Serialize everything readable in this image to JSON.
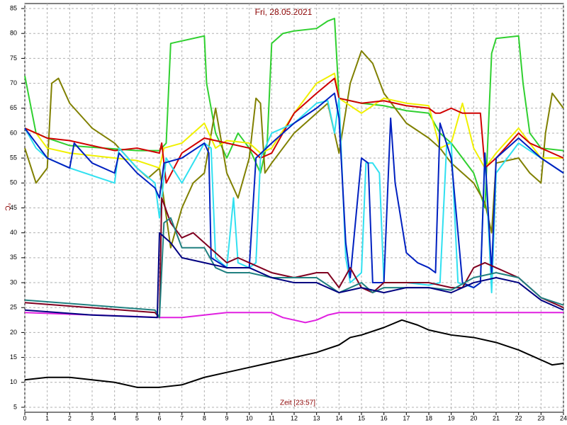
{
  "chart_data": {
    "type": "line",
    "title": "Fri, 28.05.2021",
    "x_label": "Zeit [23:57]",
    "y_label": "°C",
    "xlim": [
      0,
      24
    ],
    "xticks": [
      0,
      1,
      2,
      3,
      4,
      5,
      6,
      7,
      8,
      9,
      10,
      11,
      12,
      13,
      14,
      15,
      16,
      17,
      18,
      19,
      20,
      21,
      22,
      23,
      24
    ],
    "ylim": [
      4,
      86
    ],
    "yticks": [
      5,
      10,
      15,
      20,
      25,
      30,
      35,
      40,
      45,
      50,
      55,
      60,
      65,
      70,
      75,
      80,
      85
    ],
    "grid": true,
    "series": [
      {
        "color": "#000000",
        "x": [
          0,
          1,
          2,
          3,
          4,
          5,
          6,
          7,
          8,
          9,
          10,
          11,
          12,
          13,
          14,
          14.5,
          15,
          16,
          16.8,
          17.5,
          18,
          19,
          20,
          21,
          22,
          23,
          23.5,
          24
        ],
        "values": [
          10.5,
          11,
          11,
          10.5,
          10,
          9,
          9,
          9.5,
          11,
          12,
          13,
          14,
          15,
          16,
          17.5,
          19,
          19.5,
          21,
          22.5,
          21.5,
          20.5,
          19.5,
          19,
          18,
          16.5,
          14.5,
          13.5,
          13.8
        ]
      },
      {
        "color": "#e020e0",
        "x": [
          0,
          5,
          6,
          7,
          8,
          9,
          10,
          11,
          11.5,
          12,
          12.5,
          13,
          13.5,
          14,
          24
        ],
        "values": [
          24,
          23.2,
          23,
          23,
          23.5,
          24,
          24,
          24,
          23,
          22.5,
          22,
          22.5,
          23.5,
          24,
          24
        ]
      },
      {
        "color": "#30d030",
        "x": [
          0,
          0.5,
          1,
          2,
          5,
          6,
          6.3,
          6.5,
          8,
          8.1,
          8.5,
          9,
          9.5,
          10,
          10.5,
          10.8,
          11,
          11.5,
          12,
          13,
          13.5,
          13.8,
          14,
          15,
          16,
          17,
          18,
          18.5,
          19,
          20,
          20.5,
          20.8,
          21,
          22,
          22.2,
          22.5,
          23,
          24
        ],
        "values": [
          71.5,
          60,
          59,
          57.5,
          56.5,
          56.5,
          58,
          78,
          79.5,
          70,
          60,
          55,
          60,
          57,
          52,
          58,
          78,
          80,
          80.5,
          81,
          82.5,
          83,
          67,
          66,
          65.5,
          64.5,
          64,
          60,
          58,
          52,
          45,
          76,
          79,
          79.5,
          70,
          60,
          57,
          56.5
        ]
      },
      {
        "color": "#808000",
        "x": [
          0,
          0.5,
          1,
          1.2,
          1.5,
          2,
          3,
          4,
          5,
          5.5,
          6,
          6.5,
          7,
          7.5,
          8,
          8.5,
          9,
          9.5,
          10,
          10.3,
          10.5,
          10.7,
          11,
          12,
          13,
          13.5,
          13.8,
          14,
          14.5,
          15,
          15.5,
          16,
          17,
          18,
          18.5,
          19,
          20,
          20.5,
          20.8,
          21,
          22,
          22.5,
          23,
          23.2,
          23.5,
          24
        ],
        "values": [
          57,
          50,
          53,
          70,
          71,
          66,
          61,
          58,
          53,
          51,
          53,
          37,
          45,
          50,
          52,
          65,
          52,
          47,
          55,
          67,
          66,
          52,
          54,
          60,
          64,
          66,
          60,
          56,
          70,
          76.5,
          74,
          68,
          62,
          59,
          57,
          54,
          50,
          46,
          40,
          54,
          55,
          52,
          50,
          60,
          68,
          65
        ]
      },
      {
        "color": "#f0f000",
        "x": [
          0,
          0.5,
          1,
          2,
          4,
          5,
          6,
          6.2,
          7,
          8,
          8.5,
          9,
          10,
          10.5,
          11,
          12,
          13,
          13.8,
          14,
          15,
          16,
          17,
          18,
          18.5,
          19,
          19.5,
          20,
          20.5,
          21,
          22,
          22.5,
          23,
          24
        ],
        "values": [
          61,
          60,
          57,
          56,
          55,
          54.5,
          53,
          57,
          58,
          62,
          57,
          58.5,
          58,
          56,
          57,
          64,
          70,
          72,
          67,
          64,
          67,
          66,
          65.5,
          57,
          58,
          66,
          57,
          53,
          56,
          61,
          58,
          55,
          55
        ]
      },
      {
        "color": "#d00000",
        "x": [
          0,
          1,
          2,
          4,
          5,
          6,
          6.1,
          6.3,
          7,
          8,
          9,
          10,
          10.5,
          11,
          12,
          13,
          13.8,
          14,
          15,
          16,
          17,
          18,
          18.3,
          18.5,
          19,
          19.5,
          20,
          20.3,
          20.5,
          21,
          22,
          22.5,
          23,
          24
        ],
        "values": [
          61,
          59,
          58.5,
          56.5,
          57,
          56,
          58,
          50,
          56,
          59,
          58,
          57,
          55,
          56,
          64,
          68,
          71,
          67,
          66,
          66.5,
          65.5,
          65,
          64,
          64,
          65,
          64,
          64,
          64,
          53,
          55,
          60,
          58,
          57,
          55
        ]
      },
      {
        "color": "#30e0f0",
        "x": [
          0,
          0.5,
          1,
          2,
          4,
          4.2,
          5,
          5.8,
          6,
          6.3,
          7,
          8,
          8.3,
          8.5,
          9,
          9.3,
          9.5,
          10,
          10.3,
          10.5,
          11,
          12,
          13,
          13.5,
          13.8,
          14,
          14.3,
          14.5,
          15,
          15.2,
          15.5,
          15.8,
          16,
          16.5,
          17,
          18,
          18.5,
          18.8,
          19,
          19.3,
          20,
          20.3,
          20.5,
          20.8,
          21,
          22,
          23,
          24
        ],
        "values": [
          61,
          57,
          55,
          53,
          50,
          57,
          53,
          50,
          43,
          55,
          50,
          58,
          57,
          35,
          33,
          47,
          34,
          33,
          34,
          55,
          60,
          62,
          66,
          66.5,
          60,
          67,
          35,
          30,
          32,
          54,
          54,
          52,
          30,
          30,
          30,
          29.5,
          30,
          58,
          58,
          30,
          29,
          30,
          56,
          28,
          52,
          58,
          55,
          52
        ]
      },
      {
        "color": "#0020c0",
        "x": [
          0,
          1,
          2,
          2.2,
          3,
          4,
          4.2,
          5,
          5.8,
          6,
          6.2,
          7,
          8,
          8.2,
          8.3,
          9,
          10,
          10.3,
          11,
          12,
          13,
          13.8,
          14,
          14.3,
          14.5,
          15,
          15.3,
          15.5,
          16,
          16.3,
          16.5,
          17,
          17.5,
          18,
          18.3,
          18.5,
          19,
          19.5,
          20,
          20.3,
          20.5,
          20.8,
          21,
          22,
          23,
          24
        ],
        "values": [
          61,
          55,
          53,
          58,
          54,
          52,
          56,
          52,
          49,
          47,
          54,
          55,
          58,
          56,
          35,
          33,
          33,
          55,
          58,
          62,
          65,
          68,
          63,
          38,
          31,
          55,
          54,
          30,
          30,
          63,
          50,
          36,
          34,
          33,
          32,
          62,
          55,
          30,
          29,
          30,
          56,
          32,
          55,
          59,
          55,
          52
        ]
      },
      {
        "color": "#800020",
        "x": [
          0,
          5.8,
          6,
          6.1,
          6.5,
          7,
          7.5,
          8,
          8.5,
          9,
          9.5,
          10,
          10.5,
          11,
          12,
          13,
          13.5,
          14,
          14.5,
          15,
          15.5,
          16,
          17,
          18,
          19,
          19.5,
          20,
          20.5,
          21,
          22,
          23,
          24
        ],
        "values": [
          26,
          24,
          23,
          47,
          42,
          39,
          40,
          38,
          36,
          34,
          35,
          34,
          33,
          32,
          31,
          32,
          32,
          29,
          33,
          29,
          28,
          30,
          30,
          30,
          29,
          29,
          33,
          34,
          33,
          31,
          27,
          25
        ]
      },
      {
        "color": "#208080",
        "x": [
          0,
          5.8,
          6,
          6.2,
          6.5,
          7,
          8,
          8.5,
          9,
          10,
          11,
          12,
          13,
          14,
          15,
          15.5,
          16,
          17,
          18,
          19,
          20,
          21,
          22,
          23,
          24
        ],
        "values": [
          26.5,
          24.5,
          23,
          42,
          43,
          37,
          37,
          33,
          32,
          32,
          31,
          31,
          31,
          28,
          30,
          28,
          29,
          29,
          29,
          28.5,
          31,
          32,
          31,
          27,
          25.5
        ]
      },
      {
        "color": "#000080",
        "x": [
          0,
          3,
          5.9,
          6,
          6.5,
          7,
          8,
          9,
          10,
          11,
          12,
          13,
          14,
          15,
          16,
          17,
          18,
          19,
          20,
          21,
          22,
          23,
          24
        ],
        "values": [
          24.5,
          23.5,
          23,
          40,
          38,
          35,
          34,
          33,
          33,
          31,
          30,
          30,
          28,
          29,
          28,
          29,
          29,
          28,
          30,
          31,
          30,
          26.5,
          24.5
        ]
      }
    ]
  }
}
